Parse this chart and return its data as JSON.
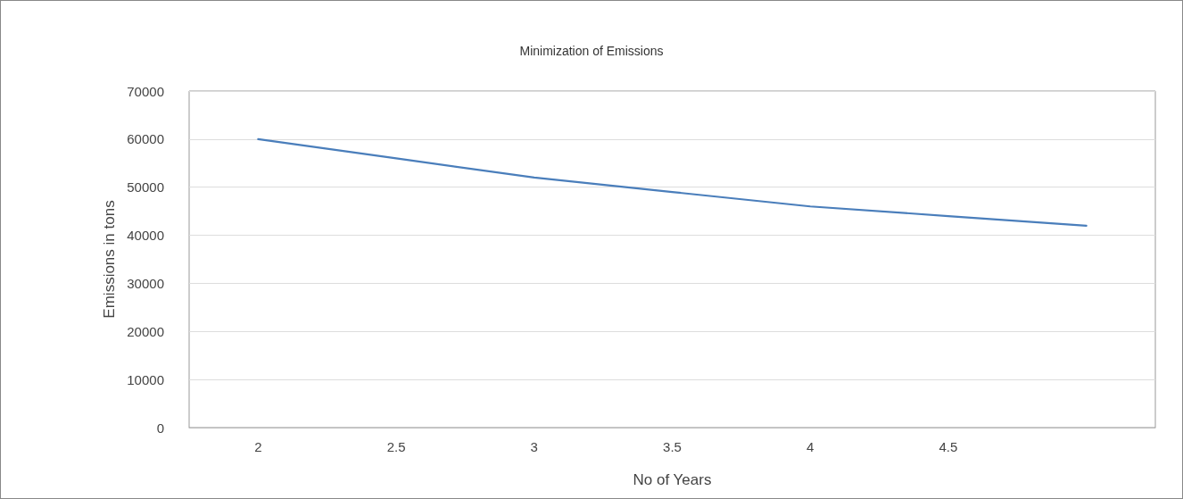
{
  "chart_data": {
    "type": "line",
    "title": "Minimization of Emissions",
    "xlabel": "No of Years",
    "ylabel": "Emissions in tons",
    "categories": [
      "2",
      "2.5",
      "3",
      "3.5",
      "4",
      "4.5",
      null
    ],
    "series": [
      {
        "color": "#4a7ebb",
        "values": [
          60000,
          56000,
          52000,
          49000,
          46000,
          44000,
          42000
        ]
      }
    ],
    "ylim": [
      0,
      70000
    ],
    "yticks": [
      0,
      10000,
      20000,
      30000,
      40000,
      50000,
      60000,
      70000
    ],
    "grid": "y",
    "marker": "none",
    "line_style": "solid"
  }
}
